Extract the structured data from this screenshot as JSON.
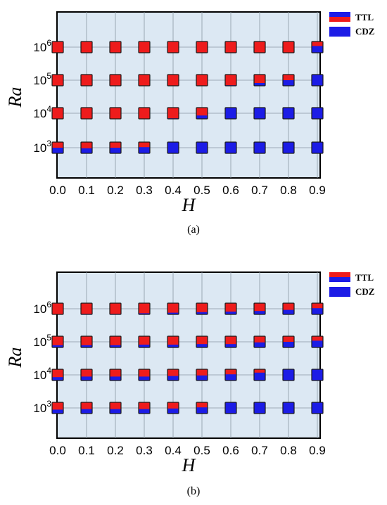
{
  "colors": {
    "ttl": "#ee1c1c",
    "cdz": "#1c1ce6",
    "plot_background": "#dce8f3"
  },
  "chart_data": [
    {
      "type": "scatter",
      "caption": "(a)",
      "xlabel": "H",
      "ylabel": "Ra",
      "x_ticks": [
        "0.0",
        "0.1",
        "0.2",
        "0.3",
        "0.4",
        "0.5",
        "0.6",
        "0.7",
        "0.8",
        "0.9"
      ],
      "y_ticks": [
        "10^3",
        "10^4",
        "10^5",
        "10^6"
      ],
      "legend": [
        {
          "label": "TTL",
          "icon": "split-marker-blue-top-red-bottom"
        },
        {
          "label": "CDZ",
          "icon": "solid-blue-marker"
        }
      ],
      "legend_position": "outside-top-right",
      "grid": true,
      "marker_note": "red fraction of each marker: 1 = all TTL (red), 0 = all CDZ (blue)",
      "points": [
        {
          "Ra": "10^3",
          "values": [
            0.5,
            0.55,
            0.5,
            0.45,
            0,
            0,
            0,
            0,
            0,
            0
          ]
        },
        {
          "Ra": "10^4",
          "values": [
            1,
            1,
            1,
            1,
            0.95,
            0.7,
            0,
            0,
            0,
            0
          ]
        },
        {
          "Ra": "10^5",
          "values": [
            1,
            1,
            1,
            1,
            1,
            1,
            0.95,
            0.75,
            0.5,
            0
          ]
        },
        {
          "Ra": "10^6",
          "values": [
            1,
            1,
            1,
            1,
            1,
            1,
            1,
            1,
            1,
            0.4
          ]
        }
      ]
    },
    {
      "type": "scatter",
      "caption": "(b)",
      "xlabel": "H",
      "ylabel": "Ra",
      "x_ticks": [
        "0.0",
        "0.1",
        "0.2",
        "0.3",
        "0.4",
        "0.5",
        "0.6",
        "0.7",
        "0.8",
        "0.9"
      ],
      "y_ticks": [
        "10^3",
        "10^4",
        "10^5",
        "10^6"
      ],
      "legend": [
        {
          "label": "TTL",
          "icon": "split-marker-red-top-blue-bottom"
        },
        {
          "label": "CDZ",
          "icon": "solid-blue-marker"
        }
      ],
      "legend_position": "outside-top-right",
      "grid": true,
      "marker_note": "red fraction of each marker: 1 = all TTL (red), 0 = all CDZ (blue)",
      "points": [
        {
          "Ra": "10^3",
          "values": [
            0.65,
            0.6,
            0.6,
            0.6,
            0.55,
            0.45,
            0,
            0,
            0,
            0
          ]
        },
        {
          "Ra": "10^4",
          "values": [
            0.7,
            0.65,
            0.65,
            0.65,
            0.6,
            0.55,
            0.45,
            0.3,
            0,
            0
          ]
        },
        {
          "Ra": "10^5",
          "values": [
            0.8,
            0.8,
            0.8,
            0.75,
            0.75,
            0.7,
            0.7,
            0.55,
            0.5,
            0.4
          ]
        },
        {
          "Ra": "10^6",
          "values": [
            1,
            0.95,
            0.95,
            0.9,
            0.85,
            0.8,
            0.75,
            0.7,
            0.6,
            0.45
          ]
        }
      ]
    }
  ]
}
